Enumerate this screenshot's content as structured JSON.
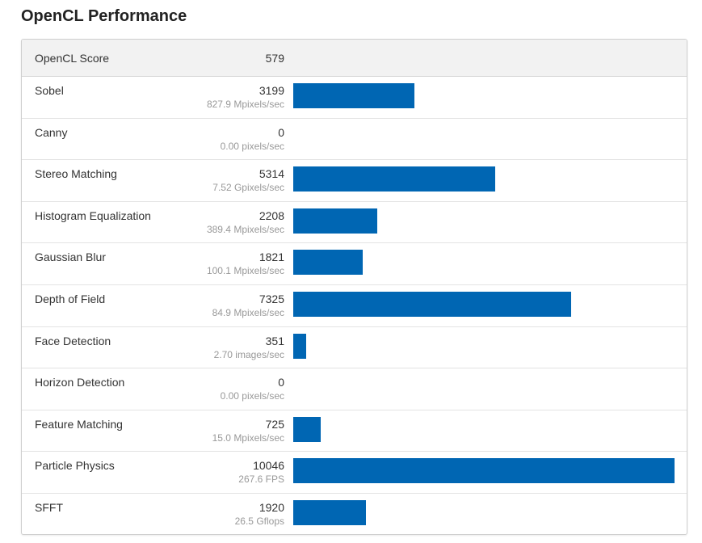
{
  "page": {
    "title": "OpenCL Performance"
  },
  "summary": {
    "label": "OpenCL Score",
    "value": "579"
  },
  "colors": {
    "bar": "#0066b3",
    "rate_text": "#999999",
    "header_bg": "#f2f2f2"
  },
  "chart_data": {
    "type": "bar",
    "orientation": "horizontal",
    "title": "OpenCL Performance",
    "xlim": [
      0,
      10046
    ],
    "grid": false,
    "categories": [
      "Sobel",
      "Canny",
      "Stereo Matching",
      "Histogram Equalization",
      "Gaussian Blur",
      "Depth of Field",
      "Face Detection",
      "Horizon Detection",
      "Feature Matching",
      "Particle Physics",
      "SFFT"
    ],
    "values": [
      3199,
      0,
      5314,
      2208,
      1821,
      7325,
      351,
      0,
      725,
      10046,
      1920
    ],
    "rates": [
      "827.9 Mpixels/sec",
      "0.00 pixels/sec",
      "7.52 Gpixels/sec",
      "389.4 Mpixels/sec",
      "100.1 Mpixels/sec",
      "84.9 Mpixels/sec",
      "2.70 images/sec",
      "0.00 pixels/sec",
      "15.0 Mpixels/sec",
      "267.6 FPS",
      "26.5 Gflops"
    ]
  }
}
